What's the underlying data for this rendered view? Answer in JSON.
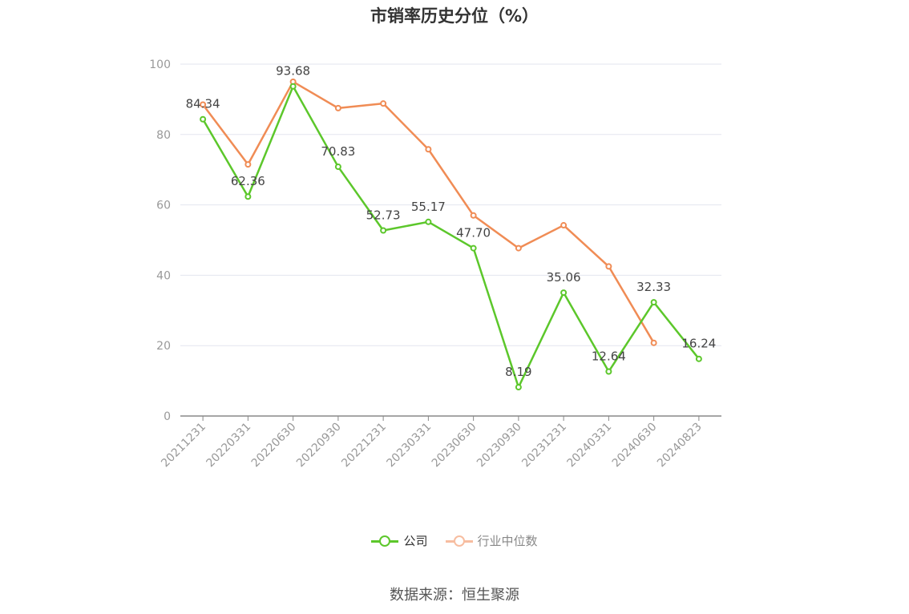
{
  "chart_data": {
    "type": "line",
    "title": "市销率历史分位（%）",
    "categories": [
      "20211231",
      "20220331",
      "20220630",
      "20220930",
      "20221231",
      "20230331",
      "20230630",
      "20230930",
      "20231231",
      "20240331",
      "20240630",
      "20240823"
    ],
    "series": [
      {
        "name": "公司",
        "color": "#5cc72b",
        "values": [
          84.34,
          62.36,
          93.68,
          70.83,
          52.73,
          55.17,
          47.7,
          8.19,
          35.06,
          12.64,
          32.33,
          16.24
        ],
        "labels": [
          "84.34",
          "62.36",
          "93.68",
          "70.83",
          "52.73",
          "55.17",
          "47.70",
          "8.19",
          "35.06",
          "12.64",
          "32.33",
          "16.24"
        ]
      },
      {
        "name": "行业中位数",
        "color": "#f08c55",
        "legend_color": "#f7bda0",
        "values": [
          88.5,
          71.5,
          95.0,
          87.5,
          88.8,
          75.8,
          57.0,
          47.7,
          54.2,
          42.5,
          20.8,
          null
        ]
      }
    ],
    "ylim": [
      0,
      100
    ],
    "yticks": [
      0,
      20,
      40,
      60,
      80,
      100
    ],
    "grid": true,
    "legend_position": "bottom-center"
  },
  "footer": {
    "source": "数据来源：恒生聚源"
  }
}
